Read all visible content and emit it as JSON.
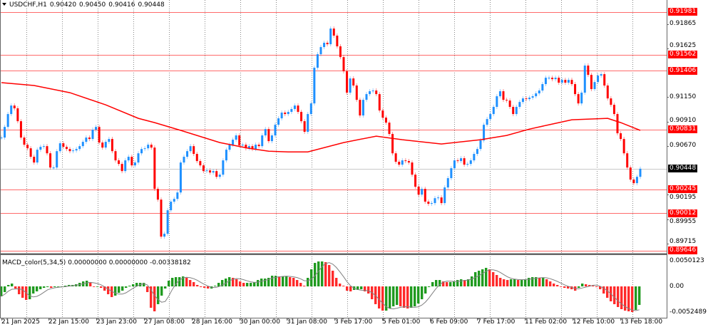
{
  "header": {
    "symbol": "USDCHF,H1",
    "open": "0.90420",
    "high": "0.90450",
    "low": "0.90416",
    "close": "0.90448"
  },
  "macd_header": {
    "name": "MACD_color(5,34,5)",
    "v1": "0.00000000",
    "v2": "0.00000000",
    "v3": "-0.00338182"
  },
  "colors": {
    "bull": "#1e90ff",
    "bear": "#ff0000",
    "ma": "#ff0000",
    "level_line": "#ff6b6b",
    "macd_up": "#1f9a1f",
    "macd_down": "#ff2a2a",
    "signal": "#808080"
  },
  "chart_data": [
    {
      "type": "line",
      "title": "USDCHF,H1",
      "ylim": [
        0.896,
        0.921
      ],
      "grid": true,
      "price_ticks": [
        "0.91865",
        "0.91625",
        "0.91150",
        "0.90910",
        "0.90670",
        "0.90195",
        "0.89955",
        "0.89715"
      ],
      "time_labels": [
        "21 Jan 2025",
        "22 Jan 15:00",
        "23 Jan 23:00",
        "27 Jan 08:00",
        "28 Jan 16:00",
        "30 Jan 00:00",
        "31 Jan 08:00",
        "3 Feb 17:00",
        "5 Feb 01:00",
        "6 Feb 09:00",
        "7 Feb 17:00",
        "11 Feb 02:00",
        "12 Feb 10:00",
        "13 Feb 18:00"
      ],
      "levels": [
        "0.91981",
        "0.91562",
        "0.91406",
        "0.90831",
        "0.90245",
        "0.90012",
        "0.89646"
      ],
      "current_price": "0.90448",
      "close": [
        0.90753,
        0.90857,
        0.90983,
        0.91066,
        0.91039,
        0.90913,
        0.90753,
        0.90683,
        0.90648,
        0.90565,
        0.90509,
        0.90634,
        0.90662,
        0.90669,
        0.90599,
        0.9046,
        0.9046,
        0.9062,
        0.90697,
        0.90662,
        0.90641,
        0.9062,
        0.90627,
        0.90641,
        0.90669,
        0.90711,
        0.90753,
        0.90739,
        0.9083,
        0.90857,
        0.90704,
        0.90655,
        0.90711,
        0.90739,
        0.9062,
        0.9053,
        0.90495,
        0.90425,
        0.9053,
        0.90565,
        0.90481,
        0.90509,
        0.90599,
        0.90641,
        0.90648,
        0.90683,
        0.90655,
        0.90251,
        0.90146,
        0.89784,
        0.89812,
        0.90042,
        0.90126,
        0.90153,
        0.90216,
        0.90509,
        0.90565,
        0.9062,
        0.90669,
        0.90593,
        0.90523,
        0.90481,
        0.90425,
        0.90432,
        0.90411,
        0.90425,
        0.90369,
        0.9039,
        0.9053,
        0.90634,
        0.90683,
        0.90732,
        0.90774,
        0.90676,
        0.90683,
        0.90648,
        0.90669,
        0.90641,
        0.90683,
        0.90669,
        0.90774,
        0.90836,
        0.90718,
        0.90774,
        0.90878,
        0.90941,
        0.90997,
        0.90983,
        0.91004,
        0.91032,
        0.91066,
        0.91004,
        0.90913,
        0.90809,
        0.90983,
        0.91087,
        0.91436,
        0.91568,
        0.91638,
        0.9168,
        0.91666,
        0.91819,
        0.9175,
        0.91645,
        0.9154,
        0.91401,
        0.91192,
        0.91331,
        0.91262,
        0.91122,
        0.90969,
        0.91122,
        0.91178,
        0.91206,
        0.91213,
        0.91178,
        0.91018,
        0.90948,
        0.90899,
        0.90788,
        0.90599,
        0.90516,
        0.90488,
        0.9053,
        0.90523,
        0.90509,
        0.9039,
        0.90272,
        0.90195,
        0.90251,
        0.90126,
        0.90105,
        0.90112,
        0.9016,
        0.90167,
        0.90112,
        0.90265,
        0.90356,
        0.90453,
        0.9053,
        0.90523,
        0.90551,
        0.90488,
        0.90495,
        0.9053,
        0.90593,
        0.90641,
        0.90725,
        0.90878,
        0.90934,
        0.90983,
        0.91053,
        0.91157,
        0.91206,
        0.91122,
        0.91115,
        0.91053,
        0.90983,
        0.91053,
        0.91101,
        0.91136,
        0.91129,
        0.91143,
        0.91157,
        0.91185,
        0.91213,
        0.91276,
        0.91338,
        0.91338,
        0.91324,
        0.91338,
        0.9129,
        0.91317,
        0.9129,
        0.91317,
        0.91276,
        0.91178,
        0.91087,
        0.91192,
        0.91457,
        0.91366,
        0.91227,
        0.91296,
        0.91359,
        0.91373,
        0.91262,
        0.91136,
        0.91073,
        0.90983,
        0.90795,
        0.90739,
        0.90599,
        0.9046,
        0.90342,
        0.90307,
        0.90369,
        0.90448
      ],
      "moving_average": [
        {
          "bar": 0,
          "value": 0.9129
        },
        {
          "bar": 10,
          "value": 0.91262
        },
        {
          "bar": 21,
          "value": 0.91192
        },
        {
          "bar": 32,
          "value": 0.91073
        },
        {
          "bar": 42,
          "value": 0.90941
        },
        {
          "bar": 47,
          "value": 0.90899
        },
        {
          "bar": 55,
          "value": 0.90823
        },
        {
          "bar": 67,
          "value": 0.90704
        },
        {
          "bar": 76,
          "value": 0.90648
        },
        {
          "bar": 82,
          "value": 0.9062
        },
        {
          "bar": 88,
          "value": 0.90613
        },
        {
          "bar": 94,
          "value": 0.90613
        },
        {
          "bar": 105,
          "value": 0.90704
        },
        {
          "bar": 115,
          "value": 0.90767
        },
        {
          "bar": 123,
          "value": 0.90732
        },
        {
          "bar": 135,
          "value": 0.9069
        },
        {
          "bar": 147,
          "value": 0.90732
        },
        {
          "bar": 155,
          "value": 0.90774
        },
        {
          "bar": 162,
          "value": 0.90836
        },
        {
          "bar": 169,
          "value": 0.90885
        },
        {
          "bar": 175,
          "value": 0.90927
        },
        {
          "bar": 186,
          "value": 0.90941
        },
        {
          "bar": 190,
          "value": 0.90899
        },
        {
          "bar": 196,
          "value": 0.90823
        }
      ]
    },
    {
      "type": "bar",
      "title": "MACD_color(5,34,5)",
      "ylim": [
        -0.0052489,
        0.0050123
      ],
      "ticks": [
        "0.0050123",
        "0.00",
        "-0.0052489"
      ],
      "histogram": [
        -0.002,
        -0.00114,
        0.00029,
        0.00057,
        -0.00043,
        -0.00157,
        -0.00228,
        -0.00271,
        -0.00257,
        -0.00143,
        -0.001,
        -0.00057,
        -0.00029,
        -0.00014,
        -0.00029,
        -0.00014,
        0,
        0,
        0.00014,
        0.00029,
        0.00029,
        0.00043,
        0.00071,
        0.001,
        0.00114,
        0.00071,
        0,
        0,
        -0.00029,
        -0.00086,
        -0.00157,
        -0.00214,
        -0.00185,
        -0.00128,
        -0.00086,
        -0.00029,
        0.00014,
        0.00043,
        0.00071,
        0.00071,
        0.00071,
        -0.00114,
        -0.00428,
        -0.00499,
        -0.00356,
        -0.00185,
        -0.00043,
        0.00114,
        0.00171,
        0.00185,
        0.00185,
        0.002,
        0.00171,
        0.00128,
        0.00086,
        0.00029,
        -0.00014,
        -0.00029,
        -0.00043,
        -0.00043,
        0.00014,
        0.00071,
        0.00128,
        0.00157,
        0.00185,
        0.00171,
        0.00143,
        0.001,
        0.00071,
        0.00071,
        0.00071,
        0.00086,
        0.00128,
        0.00157,
        0.00157,
        0.00171,
        0.00214,
        0.00214,
        0.002,
        0.002,
        0.002,
        0.00185,
        0.00171,
        0.00128,
        0.00071,
        0.00014,
        0.00171,
        0.00342,
        0.0047,
        0.00499,
        0.00499,
        0.00485,
        0.00428,
        0.00314,
        0.00171,
        0.00057,
        0.00014,
        -0.00086,
        -0.001,
        -0.00071,
        -0.00071,
        -0.00057,
        -0.001,
        -0.00143,
        -0.00257,
        -0.00356,
        -0.00442,
        -0.00485,
        -0.00485,
        -0.00442,
        -0.00399,
        -0.00371,
        -0.00399,
        -0.00428,
        -0.00442,
        -0.00428,
        -0.00399,
        -0.00342,
        -0.00257,
        -0.00143,
        -0.00014,
        0.00086,
        0.00128,
        0.00128,
        0.001,
        0.00086,
        0.00086,
        0.001,
        0.00128,
        0.00143,
        0.00128,
        0.00143,
        0.002,
        0.00285,
        0.00314,
        0.00342,
        0.00371,
        0.00342,
        0.00285,
        0.00228,
        0.00171,
        0.00143,
        0.00128,
        0.00143,
        0.00143,
        0.00128,
        0.00128,
        0.00143,
        0.00171,
        0.00185,
        0.00185,
        0.00171,
        0.00171,
        0.00143,
        0.001,
        0.00057,
        0.00029,
        0,
        -0.00029,
        -0.00043,
        -0.00057,
        -0.00086,
        -0.00029,
        0.00057,
        0.00043,
        0.00029,
        0.00014,
        -0.00014,
        -0.00057,
        -0.00143,
        -0.00228,
        -0.00299,
        -0.00356,
        -0.00413,
        -0.00456,
        -0.00485,
        -0.00499,
        -0.00513,
        -0.0047,
        -0.00371
      ]
    }
  ]
}
